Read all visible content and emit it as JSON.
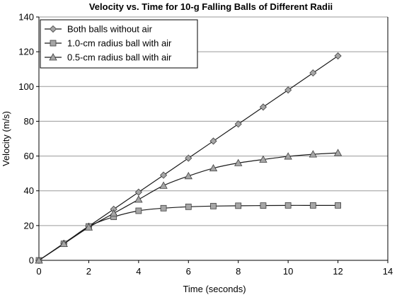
{
  "chart_data": {
    "type": "line",
    "title": "Velocity vs. Time for 10-g Falling Balls of Different Radii",
    "xlabel": "Time (seconds)",
    "ylabel": "Velocity (m/s)",
    "xlim": [
      0,
      14
    ],
    "ylim": [
      0,
      140
    ],
    "x_ticks": [
      0,
      2,
      4,
      6,
      8,
      10,
      12,
      14
    ],
    "y_ticks": [
      0,
      20,
      40,
      60,
      80,
      100,
      120,
      140
    ],
    "grid": "horizontal",
    "legend_position": "top-left",
    "series": [
      {
        "name": "Both balls without air",
        "marker": "diamond",
        "x": [
          0,
          1,
          2,
          3,
          4,
          5,
          6,
          7,
          8,
          9,
          10,
          11,
          12
        ],
        "values": [
          0,
          9.8,
          19.6,
          29.4,
          39.2,
          49,
          58.8,
          68.6,
          78.4,
          88.2,
          98,
          107.8,
          117.6
        ]
      },
      {
        "name": "1.0-cm radius ball with air",
        "marker": "square",
        "x": [
          0,
          1,
          2,
          3,
          4,
          5,
          6,
          7,
          8,
          9,
          10,
          11,
          12
        ],
        "values": [
          0,
          9.5,
          19.5,
          25,
          28.5,
          30,
          30.8,
          31.2,
          31.4,
          31.5,
          31.6,
          31.6,
          31.6
        ]
      },
      {
        "name": "0.5-cm radius ball with air",
        "marker": "triangle",
        "x": [
          0,
          1,
          2,
          3,
          4,
          5,
          6,
          7,
          8,
          9,
          10,
          11,
          12
        ],
        "values": [
          0,
          9.5,
          19,
          27,
          35,
          43,
          48.5,
          53,
          56,
          58,
          59.8,
          61,
          61.8
        ]
      }
    ]
  }
}
